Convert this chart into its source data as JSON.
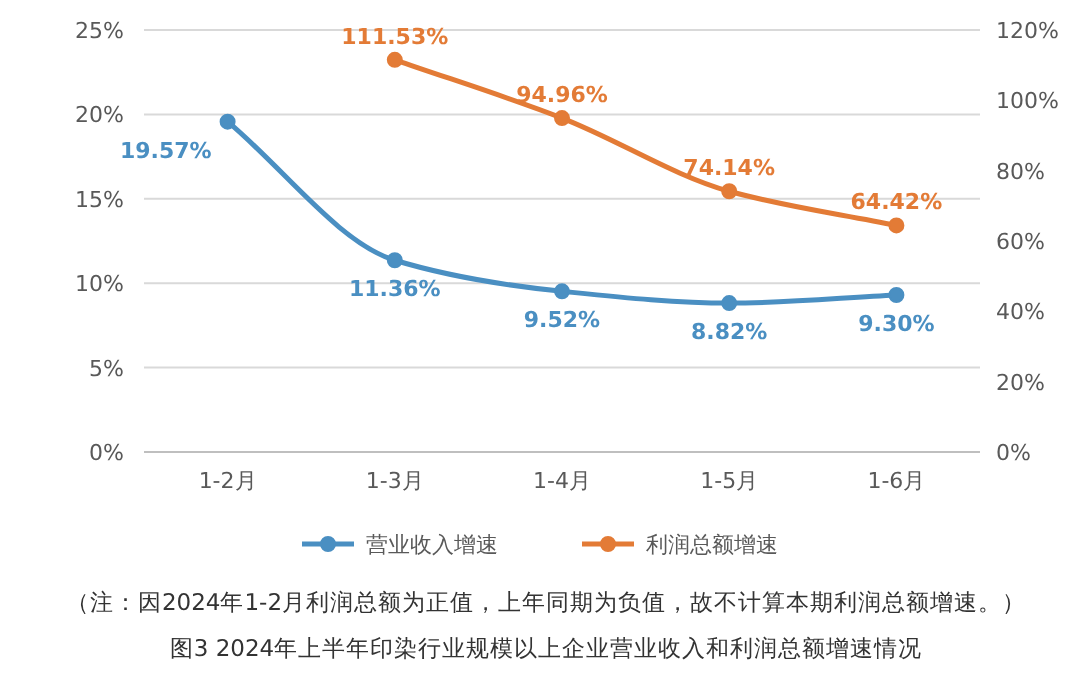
{
  "chart_data": {
    "type": "line",
    "title": "图3 2024年上半年印染行业规模以上企业营业收入和利润总额增速情况",
    "annotations": [
      "（注：因2024年1-2月利润总额为正值，上年同期为负值，故不计算本期利润总额增速。）"
    ],
    "categories": [
      "1-2月",
      "1-3月",
      "1-4月",
      "1-5月",
      "1-6月"
    ],
    "series": [
      {
        "name": "营业收入增速",
        "color": "#4a8fc2",
        "values": [
          19.57,
          11.36,
          9.52,
          8.82,
          9.3
        ],
        "value_labels": [
          "19.57%",
          "11.36%",
          "9.52%",
          "8.82%",
          "9.30%"
        ]
      },
      {
        "name": "利润总额增速",
        "color": "#e37b36",
        "axis": "y2",
        "values": [
          null,
          111.53,
          94.96,
          74.14,
          64.42
        ],
        "value_labels": [
          null,
          "111.53%",
          "94.96%",
          "74.14%",
          "64.42%"
        ]
      }
    ],
    "ylim": [
      0,
      25
    ],
    "yticks": [
      {
        "value": 0,
        "label": "0%"
      },
      {
        "value": 5,
        "label": "5%"
      },
      {
        "value": 10,
        "label": "10%"
      },
      {
        "value": 15,
        "label": "15%"
      },
      {
        "value": 20,
        "label": "20%"
      },
      {
        "value": 25,
        "label": "25%"
      }
    ],
    "y2lim": [
      0,
      120
    ],
    "y2ticks": [
      {
        "value": 0,
        "label": "0%"
      },
      {
        "value": 20,
        "label": "20%"
      },
      {
        "value": 40,
        "label": "40%"
      },
      {
        "value": 60,
        "label": "60%"
      },
      {
        "value": 80,
        "label": "80%"
      },
      {
        "value": 100,
        "label": "100%"
      },
      {
        "value": 120,
        "label": "120%"
      }
    ],
    "grid": "y",
    "legend": "bottom",
    "marker": "circle"
  }
}
